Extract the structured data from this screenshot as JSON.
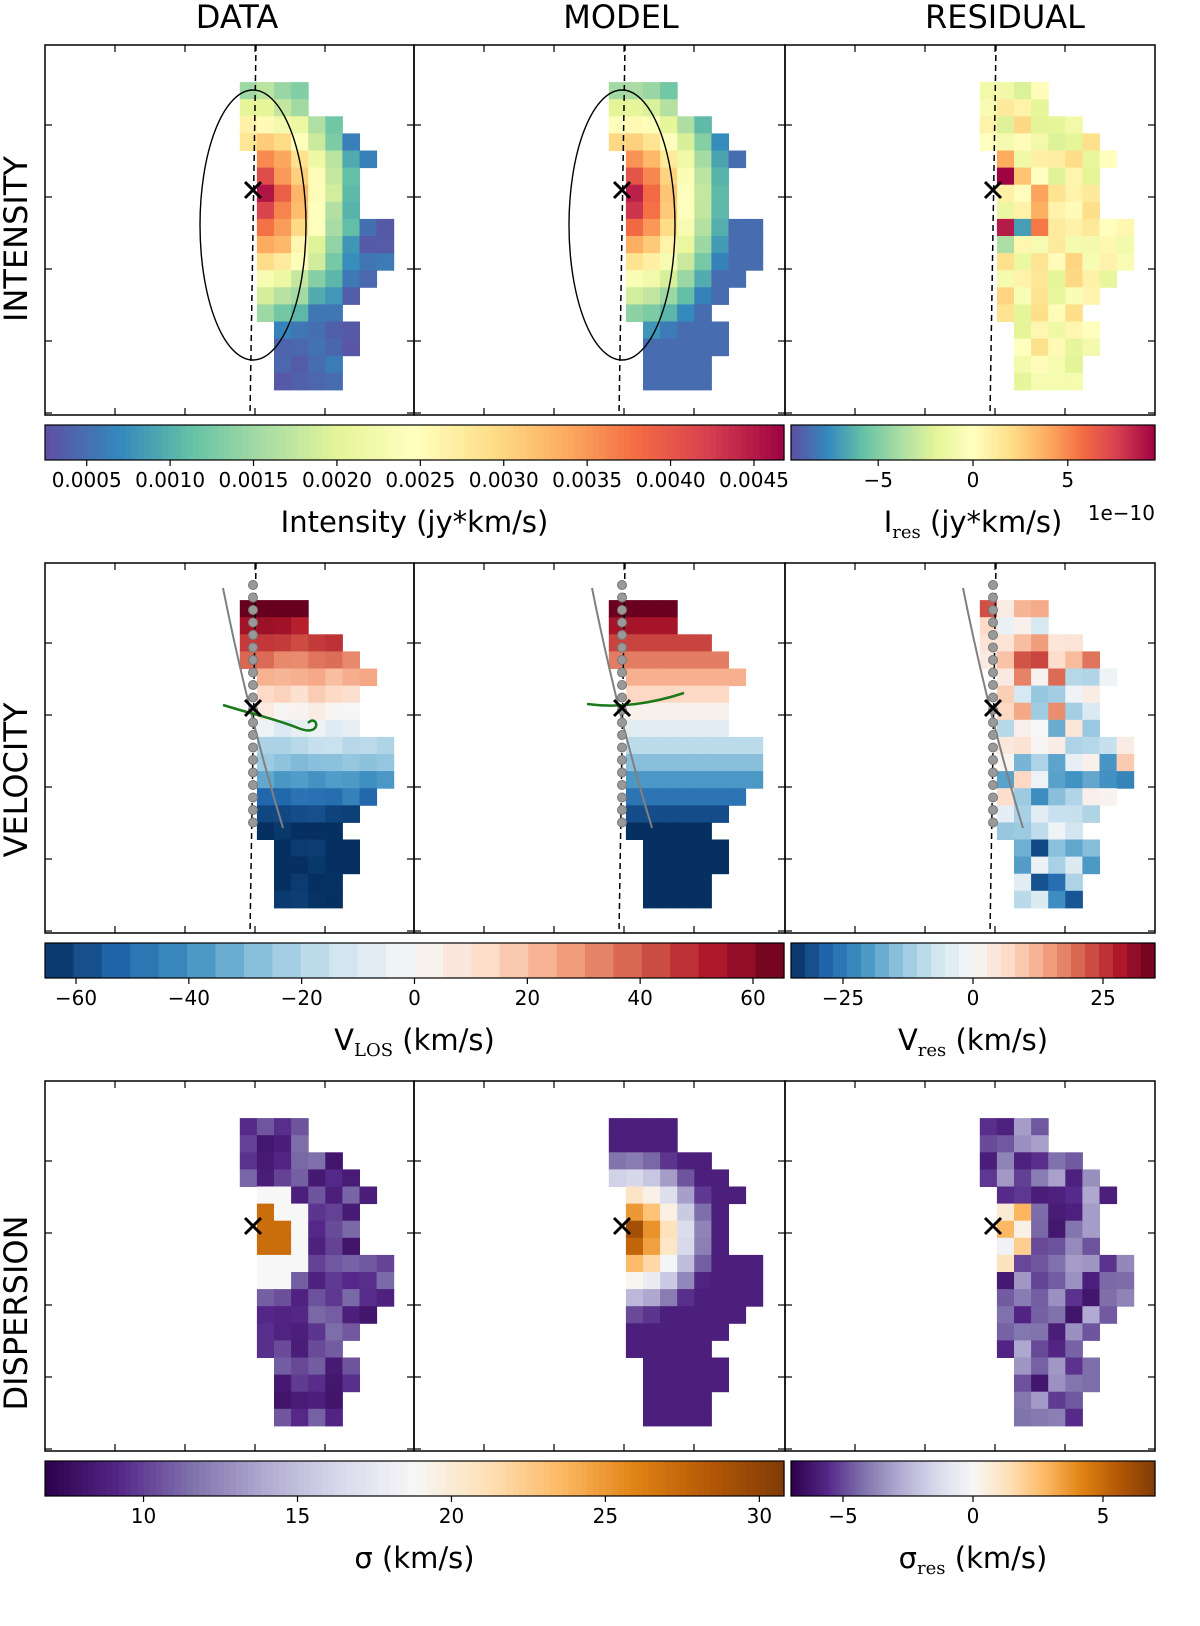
{
  "column_titles": [
    "DATA",
    "MODEL",
    "RESIDUAL"
  ],
  "row_titles": [
    "INTENSITY",
    "VELOCITY",
    "DISPERSION"
  ],
  "colors": {
    "spectral": [
      "#5e4fa2",
      "#3288bd",
      "#66c2a5",
      "#abdda4",
      "#e6f598",
      "#ffffbf",
      "#fee08b",
      "#fdae61",
      "#f46d43",
      "#d53e4f",
      "#9e0142"
    ],
    "rdbu": [
      "#053061",
      "#2166ac",
      "#4393c3",
      "#92c5de",
      "#d1e5f0",
      "#f7f7f7",
      "#fddbc7",
      "#f4a582",
      "#d6604d",
      "#b2182b",
      "#67001f"
    ],
    "puor": [
      "#2d004b",
      "#542788",
      "#8073ac",
      "#b2abd2",
      "#d8daeb",
      "#f7f7f7",
      "#fee0b6",
      "#fdb863",
      "#e08214",
      "#b35806",
      "#7f3b08"
    ],
    "dashed_axis": "#000000",
    "grey_path": "#808080",
    "green_curve": "#1a7a1a"
  },
  "colorbars": {
    "intensity": {
      "ticks": [
        "0.0005",
        "0.0010",
        "0.0015",
        "0.0020",
        "0.0025",
        "0.0030",
        "0.0035",
        "0.0040",
        "0.0045"
      ],
      "tick_values": [
        0.0005,
        0.001,
        0.0015,
        0.002,
        0.0025,
        0.003,
        0.0035,
        0.004,
        0.0045
      ],
      "range": [
        0.00025,
        0.00468
      ],
      "label": "Intensity (jy*km/s)"
    },
    "intensity_res": {
      "ticks": [
        "−5",
        "0",
        "5"
      ],
      "tick_values": [
        -5,
        0,
        5
      ],
      "range": [
        -9.6,
        9.6
      ],
      "label_main": "I",
      "label_sub": "res",
      "label_rest": " (jy*km/s)",
      "offset": "1e−10"
    },
    "velocity": {
      "ticks": [
        "−60",
        "−40",
        "−20",
        "0",
        "20",
        "40",
        "60"
      ],
      "tick_values": [
        -60,
        -40,
        -20,
        0,
        20,
        40,
        60
      ],
      "range": [
        -65.5,
        65.5
      ],
      "label_main": "V",
      "label_sub": "LOS",
      "label_rest": " (km/s)"
    },
    "velocity_res": {
      "ticks": [
        "−25",
        "0",
        "25"
      ],
      "tick_values": [
        -25,
        0,
        25
      ],
      "range": [
        -35,
        35
      ],
      "label_main": "V",
      "label_sub": "res",
      "label_rest": " (km/s)"
    },
    "dispersion": {
      "ticks": [
        "10",
        "15",
        "20",
        "25",
        "30"
      ],
      "tick_values": [
        10,
        15,
        20,
        25,
        30
      ],
      "range": [
        6.8,
        30.8
      ],
      "label": "σ (km/s)"
    },
    "dispersion_res": {
      "ticks": [
        "−5",
        "0",
        "5"
      ],
      "tick_values": [
        -5,
        0,
        5
      ],
      "range": [
        -7,
        7
      ],
      "label_main": "σ",
      "label_sub": "res",
      "label_rest": " (km/s)"
    }
  },
  "chart_data": {
    "type": "heatmap",
    "grid": "3 rows x 3 columns of map panels",
    "panels": {
      "intensity_data": {
        "colormap": "spectral",
        "range": [
          0.00025,
          0.00468
        ],
        "peak": 0.0046,
        "marker": "center cross",
        "ellipse": true,
        "dashed_axis": true
      },
      "intensity_model": {
        "colormap": "spectral",
        "range": [
          0.00025,
          0.00468
        ],
        "peak": 0.0046,
        "marker": "center cross",
        "ellipse": true,
        "dashed_axis": true
      },
      "intensity_residual": {
        "colormap": "spectral",
        "range": [
          -9.6e-10,
          9.6e-10
        ],
        "marker": "center cross",
        "dashed_axis": true
      },
      "velocity_data": {
        "colormap": "rdbu",
        "range": [
          -65.5,
          65.5
        ],
        "marker": "center cross",
        "dashed_axis": true,
        "grey_path": true,
        "green_curve": true
      },
      "velocity_model": {
        "colormap": "rdbu",
        "range": [
          -65.5,
          65.5
        ],
        "marker": "center cross",
        "dashed_axis": true,
        "grey_path": true,
        "green_curve": true
      },
      "velocity_residual": {
        "colormap": "rdbu",
        "range": [
          -35,
          35
        ],
        "marker": "center cross",
        "dashed_axis": true,
        "grey_path": true
      },
      "dispersion_data": {
        "colormap": "puor",
        "range": [
          6.8,
          30.8
        ],
        "marker": "center cross"
      },
      "dispersion_model": {
        "colormap": "puor",
        "range": [
          6.8,
          30.8
        ],
        "peak": 30,
        "marker": "center cross"
      },
      "dispersion_residual": {
        "colormap": "puor",
        "range": [
          -7,
          7
        ],
        "marker": "center cross"
      }
    }
  }
}
